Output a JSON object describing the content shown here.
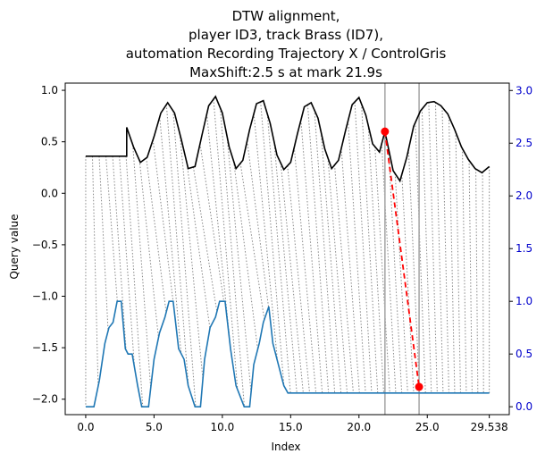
{
  "chart_data": {
    "type": "line",
    "title_lines": [
      "DTW alignment,",
      "player ID3, track Brass (ID7),",
      "automation Recording Trajectory X / ControlGris",
      "MaxShift:2.5 s at mark 21.9s"
    ],
    "xlabel": "Index",
    "ylabel": "Query value",
    "xlim": [
      -1.5,
      31.0
    ],
    "ylim_left": [
      -2.15,
      1.07
    ],
    "ylim_right": [
      -0.075,
      3.07
    ],
    "x_ticks": [
      0.0,
      5.0,
      10.0,
      15.0,
      20.0,
      25.0,
      29.538
    ],
    "x_tick_labels": [
      "0.0",
      "5.0",
      "10.0",
      "15.0",
      "20.0",
      "25.0",
      "29.538"
    ],
    "y_left_ticks": [
      1.0,
      0.5,
      0.0,
      -0.5,
      -1.0,
      -1.5,
      -2.0
    ],
    "y_left_tick_labels": [
      "1.0",
      "0.5",
      "0.0",
      "−0.5",
      "−1.0",
      "−1.5",
      "−2.0"
    ],
    "y_right_ticks": [
      3.0,
      2.5,
      2.0,
      1.5,
      1.0,
      0.5,
      0.0
    ],
    "y_right_tick_labels": [
      "3.0",
      "2.5",
      "2.0",
      "1.5",
      "1.0",
      "0.5",
      "0.0"
    ],
    "vlines": [
      21.9,
      24.4
    ],
    "highlight": {
      "x1": 21.9,
      "y1": 0.6,
      "x2": 24.4,
      "y2": -1.88
    },
    "colors": {
      "query": "#000000",
      "reference": "#1f77b4",
      "connector": "#888888",
      "highlight": "#ff0000",
      "vline": "#aaaaaa",
      "right_axis": "#0000cc"
    },
    "series": [
      {
        "axis": "left",
        "color": "#000000",
        "x": [
          0.0,
          3.0,
          3.0,
          3.5,
          4.0,
          4.5,
          5.0,
          5.5,
          6.0,
          6.5,
          7.0,
          7.5,
          8.0,
          8.5,
          9.0,
          9.5,
          10.0,
          10.5,
          11.0,
          11.5,
          12.0,
          12.5,
          13.0,
          13.5,
          14.0,
          14.5,
          15.0,
          15.5,
          16.0,
          16.5,
          17.0,
          17.5,
          18.0,
          18.5,
          19.0,
          19.5,
          20.0,
          20.5,
          21.0,
          21.5,
          21.9,
          22.5,
          23.0,
          23.5,
          24.0,
          24.5,
          25.0,
          25.5,
          26.0,
          26.5,
          27.0,
          27.5,
          28.0,
          28.5,
          29.0,
          29.538
        ],
        "y": [
          0.36,
          0.36,
          0.64,
          0.45,
          0.3,
          0.35,
          0.55,
          0.78,
          0.88,
          0.78,
          0.52,
          0.24,
          0.26,
          0.56,
          0.85,
          0.94,
          0.78,
          0.45,
          0.24,
          0.32,
          0.62,
          0.87,
          0.9,
          0.68,
          0.37,
          0.23,
          0.3,
          0.58,
          0.84,
          0.88,
          0.73,
          0.43,
          0.24,
          0.32,
          0.6,
          0.86,
          0.93,
          0.76,
          0.48,
          0.4,
          0.6,
          0.22,
          0.12,
          0.35,
          0.65,
          0.8,
          0.88,
          0.89,
          0.85,
          0.77,
          0.62,
          0.45,
          0.33,
          0.24,
          0.2,
          0.26
        ]
      },
      {
        "axis": "right",
        "color": "#1f77b4",
        "x": [
          0.0,
          0.6,
          1.0,
          1.4,
          1.7,
          2.0,
          2.3,
          2.6,
          2.9,
          3.1,
          3.4,
          3.8,
          4.1,
          4.6,
          5.0,
          5.4,
          5.8,
          6.1,
          6.4,
          6.8,
          7.2,
          7.5,
          8.0,
          8.4,
          8.7,
          9.1,
          9.5,
          9.8,
          10.2,
          10.6,
          11.0,
          11.6,
          12.0,
          12.3,
          12.7,
          13.0,
          13.4,
          13.7,
          14.0,
          14.5,
          14.8,
          15.0,
          20.0,
          25.0,
          29.538
        ],
        "y": [
          0.0,
          0.0,
          0.25,
          0.6,
          0.75,
          0.8,
          1.0,
          1.0,
          0.55,
          0.5,
          0.5,
          0.2,
          0.0,
          0.0,
          0.45,
          0.7,
          0.85,
          1.0,
          1.0,
          0.55,
          0.45,
          0.2,
          0.0,
          0.0,
          0.45,
          0.75,
          0.85,
          1.0,
          1.0,
          0.55,
          0.2,
          0.0,
          0.0,
          0.4,
          0.6,
          0.8,
          0.95,
          0.6,
          0.45,
          0.2,
          0.13,
          0.13,
          0.13,
          0.13,
          0.13
        ]
      }
    ]
  }
}
